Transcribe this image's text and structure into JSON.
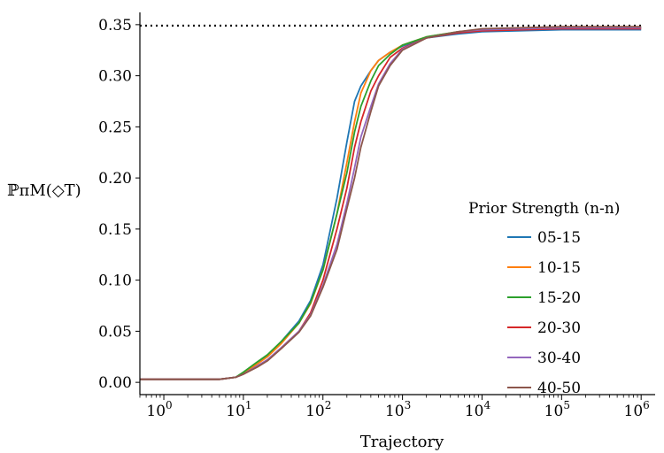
{
  "chart_data": {
    "type": "line",
    "xlabel": "Trajectory",
    "ylabel": "ℙπM(◇T)",
    "xscale": "log",
    "xlim": [
      0.5,
      1500000
    ],
    "ylim": [
      -0.012,
      0.362
    ],
    "x_ticks": [
      {
        "value": 1,
        "base": "10",
        "exp": "0"
      },
      {
        "value": 10,
        "base": "10",
        "exp": "1"
      },
      {
        "value": 100,
        "base": "10",
        "exp": "2"
      },
      {
        "value": 1000,
        "base": "10",
        "exp": "3"
      },
      {
        "value": 10000,
        "base": "10",
        "exp": "4"
      },
      {
        "value": 100000,
        "base": "10",
        "exp": "5"
      },
      {
        "value": 1000000,
        "base": "10",
        "exp": "6"
      }
    ],
    "y_ticks": [
      "0.00",
      "0.05",
      "0.10",
      "0.15",
      "0.20",
      "0.25",
      "0.30",
      "0.35"
    ],
    "reference_line": {
      "y": 0.349,
      "style": "dotted",
      "color": "#000000"
    },
    "grid": false,
    "legend": {
      "title": "Prior Strength (n-n)",
      "placement": "center-right"
    },
    "series": [
      {
        "name": "05-15",
        "color": "#1f77b4",
        "x": [
          0.5,
          5,
          8,
          10,
          15,
          20,
          30,
          50,
          70,
          100,
          150,
          200,
          250,
          300,
          400,
          500,
          700,
          1000,
          2000,
          5000,
          10000,
          100000,
          1000000
        ],
        "y": [
          0.003,
          0.003,
          0.005,
          0.009,
          0.018,
          0.026,
          0.04,
          0.06,
          0.08,
          0.115,
          0.18,
          0.235,
          0.275,
          0.29,
          0.305,
          0.315,
          0.323,
          0.329,
          0.337,
          0.341,
          0.343,
          0.345,
          0.345
        ]
      },
      {
        "name": "10-15",
        "color": "#ff7f0e",
        "x": [
          0.5,
          5,
          8,
          10,
          15,
          20,
          30,
          50,
          70,
          100,
          150,
          200,
          250,
          300,
          400,
          500,
          700,
          1000,
          2000,
          5000,
          10000,
          100000,
          1000000
        ],
        "y": [
          0.003,
          0.003,
          0.005,
          0.009,
          0.018,
          0.025,
          0.038,
          0.058,
          0.077,
          0.11,
          0.165,
          0.215,
          0.255,
          0.283,
          0.305,
          0.315,
          0.323,
          0.33,
          0.338,
          0.343,
          0.345,
          0.347,
          0.347
        ]
      },
      {
        "name": "15-20",
        "color": "#2ca02c",
        "x": [
          0.5,
          5,
          8,
          10,
          15,
          20,
          30,
          50,
          70,
          100,
          150,
          200,
          250,
          300,
          400,
          500,
          700,
          1000,
          2000,
          5000,
          10000,
          100000,
          1000000
        ],
        "y": [
          0.003,
          0.003,
          0.005,
          0.01,
          0.02,
          0.027,
          0.04,
          0.058,
          0.078,
          0.11,
          0.165,
          0.205,
          0.245,
          0.27,
          0.295,
          0.31,
          0.321,
          0.33,
          0.338,
          0.343,
          0.345,
          0.347,
          0.347
        ]
      },
      {
        "name": "20-30",
        "color": "#d62728",
        "x": [
          0.5,
          5,
          8,
          10,
          15,
          20,
          30,
          50,
          70,
          100,
          150,
          200,
          250,
          300,
          400,
          500,
          700,
          1000,
          2000,
          5000,
          10000,
          100000,
          1000000
        ],
        "y": [
          0.003,
          0.003,
          0.005,
          0.008,
          0.016,
          0.022,
          0.034,
          0.05,
          0.068,
          0.1,
          0.15,
          0.19,
          0.23,
          0.255,
          0.285,
          0.3,
          0.318,
          0.327,
          0.337,
          0.342,
          0.344,
          0.346,
          0.346
        ]
      },
      {
        "name": "30-40",
        "color": "#9467bd",
        "x": [
          0.5,
          5,
          8,
          10,
          15,
          20,
          30,
          50,
          70,
          100,
          150,
          200,
          250,
          300,
          400,
          500,
          700,
          1000,
          2000,
          5000,
          10000,
          100000,
          1000000
        ],
        "y": [
          0.003,
          0.003,
          0.005,
          0.008,
          0.016,
          0.022,
          0.034,
          0.05,
          0.066,
          0.095,
          0.135,
          0.175,
          0.21,
          0.24,
          0.27,
          0.292,
          0.312,
          0.326,
          0.337,
          0.343,
          0.345,
          0.347,
          0.347
        ]
      },
      {
        "name": "40-50",
        "color": "#8c564b",
        "x": [
          0.5,
          5,
          8,
          10,
          15,
          20,
          30,
          50,
          70,
          100,
          150,
          200,
          250,
          300,
          400,
          500,
          700,
          1000,
          2000,
          5000,
          10000,
          100000,
          1000000
        ],
        "y": [
          0.003,
          0.003,
          0.005,
          0.008,
          0.015,
          0.021,
          0.033,
          0.049,
          0.065,
          0.093,
          0.13,
          0.17,
          0.2,
          0.23,
          0.265,
          0.29,
          0.31,
          0.325,
          0.337,
          0.343,
          0.346,
          0.348,
          0.348
        ]
      }
    ]
  }
}
